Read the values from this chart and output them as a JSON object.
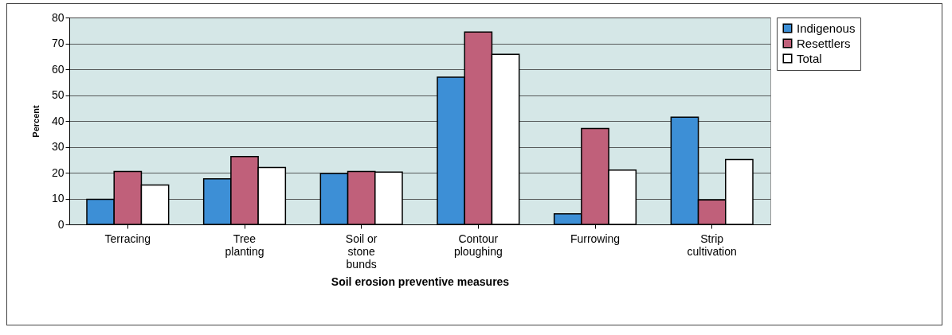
{
  "chart_data": {
    "type": "bar",
    "xlabel": "Soil erosion preventive measures",
    "ylabel": "Percent",
    "categories": [
      "Terracing",
      "Tree planting",
      "Soil or stone bunds",
      "Contour ploughing",
      "Furrowing",
      "Strip cultivation"
    ],
    "series": [
      {
        "name": "Indigenous",
        "color": "#3d8fd6",
        "values": [
          9.7,
          17.6,
          19.7,
          56.9,
          4.1,
          41.5
        ]
      },
      {
        "name": "Resettlers",
        "color": "#c0607a",
        "values": [
          20.5,
          26.2,
          20.5,
          74.4,
          37.1,
          9.5
        ]
      },
      {
        "name": "Total",
        "color": "#ffffff",
        "values": [
          15.2,
          22,
          20.2,
          65.8,
          21,
          25.1
        ]
      }
    ],
    "ylim": [
      0,
      80
    ],
    "yticks": [
      0,
      10,
      20,
      30,
      40,
      50,
      60,
      70,
      80
    ],
    "grid": "y",
    "legend": "right"
  }
}
